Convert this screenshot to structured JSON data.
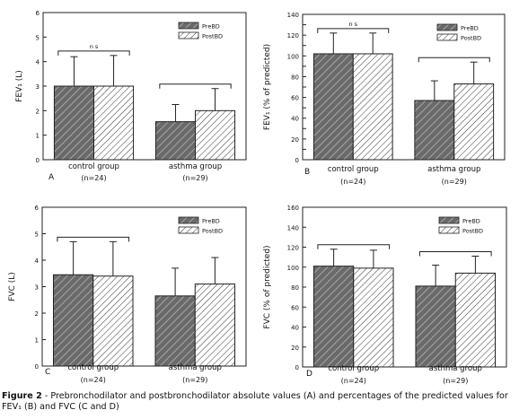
{
  "figure": {
    "caption_label": "Figure 2",
    "caption_text": " - Prebronchodilator and postbronchodilator absolute values (A) and percentages of the predicted values for FEV₁ (B) and FVC (C and D)"
  },
  "chart_data": [
    {
      "type": "bar",
      "panel_letter": "A",
      "ylabel": "FEV₁ (L)",
      "ylim": [
        0,
        6
      ],
      "yticks": [
        0,
        1,
        2,
        3,
        4,
        5,
        6
      ],
      "categories": [
        "control group",
        "asthma group"
      ],
      "category_n": [
        "(n=24)",
        "(n=29)"
      ],
      "series": [
        {
          "name": "PreBD",
          "values": [
            3.0,
            1.55
          ],
          "error": [
            1.2,
            0.7
          ]
        },
        {
          "name": "PostBD",
          "values": [
            3.0,
            2.0
          ],
          "error": [
            1.25,
            0.9
          ]
        }
      ],
      "annotations": [
        {
          "category": 0,
          "label": "n s"
        },
        {
          "category": 1,
          "label": ""
        }
      ],
      "legend": "top-right"
    },
    {
      "type": "bar",
      "panel_letter": "B",
      "ylabel": "FEV₁ (% of predicted)",
      "ylim": [
        0,
        140
      ],
      "yticks": [
        0,
        10,
        20,
        30,
        40,
        50,
        60,
        70,
        80,
        90,
        100,
        110,
        120,
        130,
        140
      ],
      "categories": [
        "control group",
        "asthma group"
      ],
      "category_n": [
        "(n=24)",
        "(n=29)"
      ],
      "series": [
        {
          "name": "PreBD",
          "values": [
            102,
            57
          ],
          "error": [
            20,
            19
          ]
        },
        {
          "name": "PostBD",
          "values": [
            102,
            73
          ],
          "error": [
            20,
            21
          ]
        }
      ],
      "annotations": [
        {
          "category": 0,
          "label": "n s"
        },
        {
          "category": 1,
          "label": ""
        }
      ],
      "legend": "top-right"
    },
    {
      "type": "bar",
      "panel_letter": "C",
      "ylabel": "FVC (L)",
      "ylim": [
        0,
        6
      ],
      "yticks": [
        0,
        1,
        2,
        3,
        4,
        5,
        6
      ],
      "categories": [
        "control group",
        "asthma group"
      ],
      "category_n": [
        "(n=24)",
        "(n=29)"
      ],
      "series": [
        {
          "name": "PreBD",
          "values": [
            3.45,
            2.65
          ],
          "error": [
            1.25,
            1.05
          ]
        },
        {
          "name": "PostBD",
          "values": [
            3.4,
            3.1
          ],
          "error": [
            1.3,
            1.0
          ]
        }
      ],
      "annotations": [
        {
          "category": 0,
          "label": ""
        }
      ],
      "legend": "top-right"
    },
    {
      "type": "bar",
      "panel_letter": "D",
      "ylabel": "FVC (% of predicted)",
      "ylim": [
        0,
        160
      ],
      "yticks": [
        0,
        20,
        40,
        60,
        80,
        100,
        120,
        140,
        160
      ],
      "categories": [
        "control group",
        "asthma group"
      ],
      "category_n": [
        "(n=24)",
        "(n=29)"
      ],
      "series": [
        {
          "name": "PreBD",
          "values": [
            101,
            81
          ],
          "error": [
            17,
            21
          ]
        },
        {
          "name": "PostBD",
          "values": [
            99,
            94
          ],
          "error": [
            18,
            17
          ]
        }
      ],
      "annotations": [
        {
          "category": 0,
          "label": ""
        },
        {
          "category": 1,
          "label": ""
        }
      ],
      "legend": "top-right"
    }
  ]
}
